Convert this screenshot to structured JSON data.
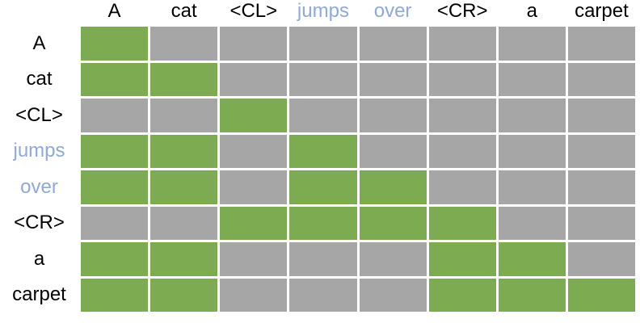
{
  "chart_data": {
    "type": "heatmap",
    "title": "",
    "x_labels": [
      "A",
      "cat",
      "<CL>",
      "jumps",
      "over",
      "<CR>",
      "a",
      "carpet"
    ],
    "y_labels": [
      "A",
      "cat",
      "<CL>",
      "jumps",
      "over",
      "<CR>",
      "a",
      "carpet"
    ],
    "tokens": [
      {
        "label": "A",
        "highlight": false
      },
      {
        "label": "cat",
        "highlight": false
      },
      {
        "label": "<CL>",
        "highlight": false
      },
      {
        "label": "jumps",
        "highlight": true
      },
      {
        "label": "over",
        "highlight": true
      },
      {
        "label": "<CR>",
        "highlight": false
      },
      {
        "label": "a",
        "highlight": false
      },
      {
        "label": "carpet",
        "highlight": false
      }
    ],
    "matrix": [
      [
        1,
        0,
        0,
        0,
        0,
        0,
        0,
        0
      ],
      [
        1,
        1,
        0,
        0,
        0,
        0,
        0,
        0
      ],
      [
        0,
        0,
        1,
        0,
        0,
        0,
        0,
        0
      ],
      [
        1,
        1,
        0,
        1,
        0,
        0,
        0,
        0
      ],
      [
        1,
        1,
        0,
        1,
        1,
        0,
        0,
        0
      ],
      [
        0,
        0,
        1,
        1,
        1,
        1,
        0,
        0
      ],
      [
        1,
        1,
        0,
        0,
        0,
        1,
        1,
        0
      ],
      [
        1,
        1,
        0,
        0,
        0,
        1,
        1,
        1
      ]
    ],
    "value_meaning": {
      "1": "green",
      "0": "gray"
    },
    "colors": {
      "cell_on": "#7CAB51",
      "cell_off": "#A6A6A6",
      "token_highlight": "#8EA9DB",
      "token_default": "#000000",
      "gridline": "#FFFFFF"
    },
    "legend_position": "none",
    "grid": true
  }
}
